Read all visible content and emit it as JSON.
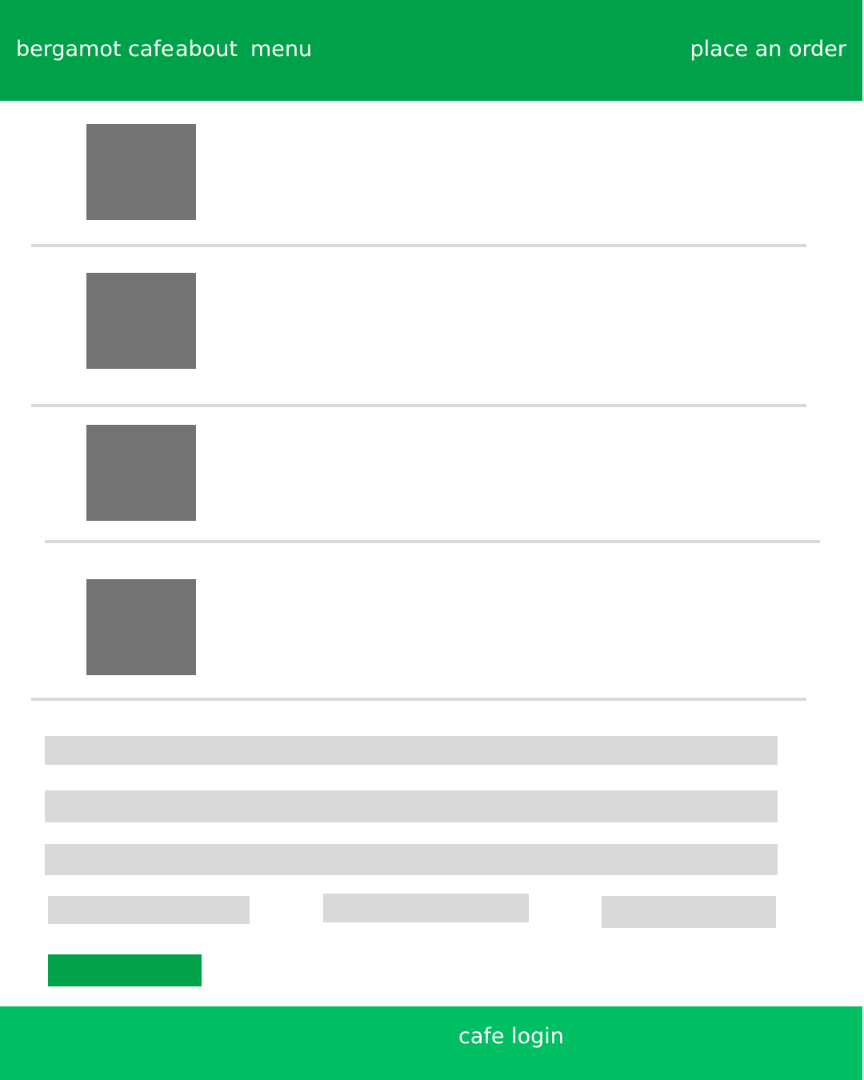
{
  "nav": {
    "brand": "bergamot cafe",
    "about": "about",
    "menu": "menu",
    "order": "place an order"
  },
  "footer": {
    "login": "cafe login"
  },
  "colors": {
    "nav_background": "#00a249",
    "footer_background": "#00bf63",
    "submit_button": "#00a249",
    "image_placeholder": "#737373",
    "field_placeholder": "#d9d9d9"
  }
}
